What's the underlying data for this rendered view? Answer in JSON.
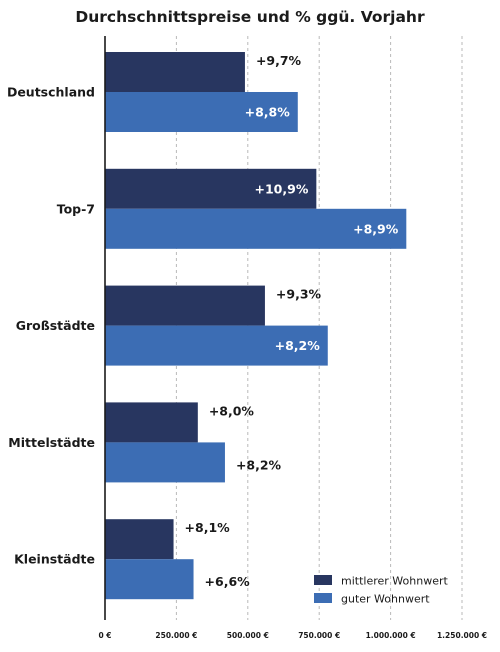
{
  "chart_data": {
    "type": "bar",
    "orientation": "horizontal",
    "title": "Durchschnittspreise und % ggü. Vorjahr",
    "xlabel": "",
    "ylabel": "",
    "xlim": [
      0,
      1250000
    ],
    "x_ticks": [
      0,
      250000,
      500000,
      750000,
      1000000,
      1250000
    ],
    "x_tick_labels": [
      "0 €",
      "250.000 €",
      "500.000 €",
      "750.000 €",
      "1.000.000 €",
      "1.250.000 €"
    ],
    "grid": "vertical dashed",
    "legend_position": "bottom-right",
    "categories": [
      "Deutschland",
      "Top-7",
      "Großstädte",
      "Mittelstädte",
      "Kleinstädte"
    ],
    "series": [
      {
        "name": "mittlerer Wohnwert",
        "color": "#283660",
        "values": [
          490000,
          740000,
          560000,
          325000,
          240000
        ],
        "labels": [
          "+9,7%",
          "+10,9%",
          "+9,3%",
          "+8,0%",
          "+8,1%"
        ]
      },
      {
        "name": "guter Wohnwert",
        "color": "#3c6db4",
        "values": [
          675000,
          1055000,
          780000,
          420000,
          310000
        ],
        "labels": [
          "+8,8%",
          "+8,9%",
          "+8,2%",
          "+8,2%",
          "+6,6%"
        ]
      }
    ]
  }
}
